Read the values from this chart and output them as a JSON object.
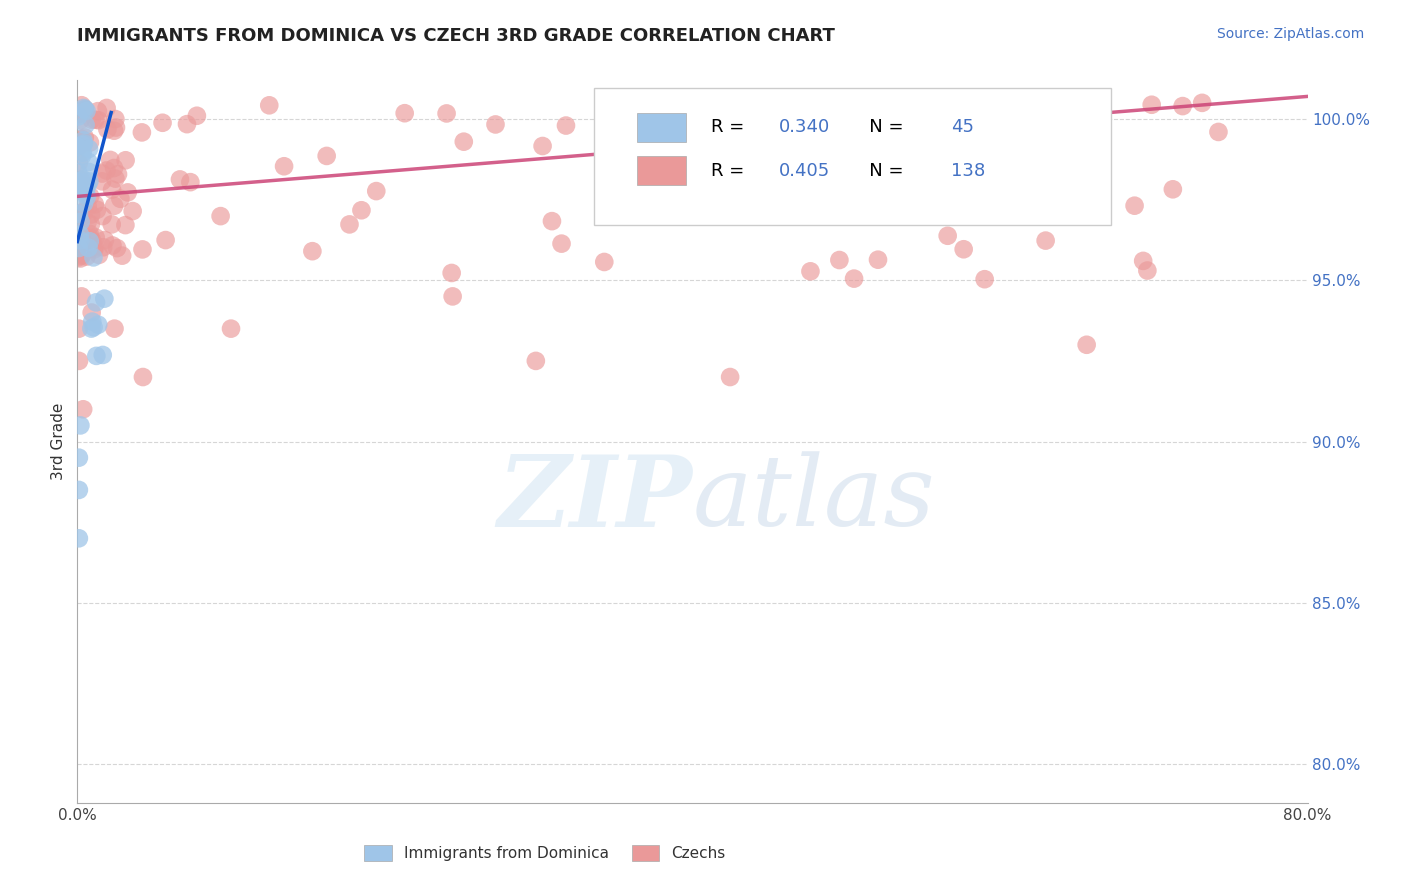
{
  "title": "IMMIGRANTS FROM DOMINICA VS CZECH 3RD GRADE CORRELATION CHART",
  "source_text": "Source: ZipAtlas.com",
  "ylabel": "3rd Grade",
  "xlim": [
    0.0,
    0.8
  ],
  "ylim": [
    0.788,
    1.012
  ],
  "yticks": [
    0.8,
    0.85,
    0.9,
    0.95,
    1.0
  ],
  "ytick_labels": [
    "80.0%",
    "85.0%",
    "90.0%",
    "95.0%",
    "100.0%"
  ],
  "blue_color": "#9fc5e8",
  "pink_color": "#ea9999",
  "blue_line_color": "#1155cc",
  "pink_line_color": "#cc4477",
  "R_blue": 0.34,
  "N_blue": 45,
  "R_pink": 0.405,
  "N_pink": 138,
  "legend_label_blue": "Immigrants from Dominica",
  "legend_label_pink": "Czechs",
  "watermark": "ZIPatlas",
  "background_color": "#ffffff"
}
